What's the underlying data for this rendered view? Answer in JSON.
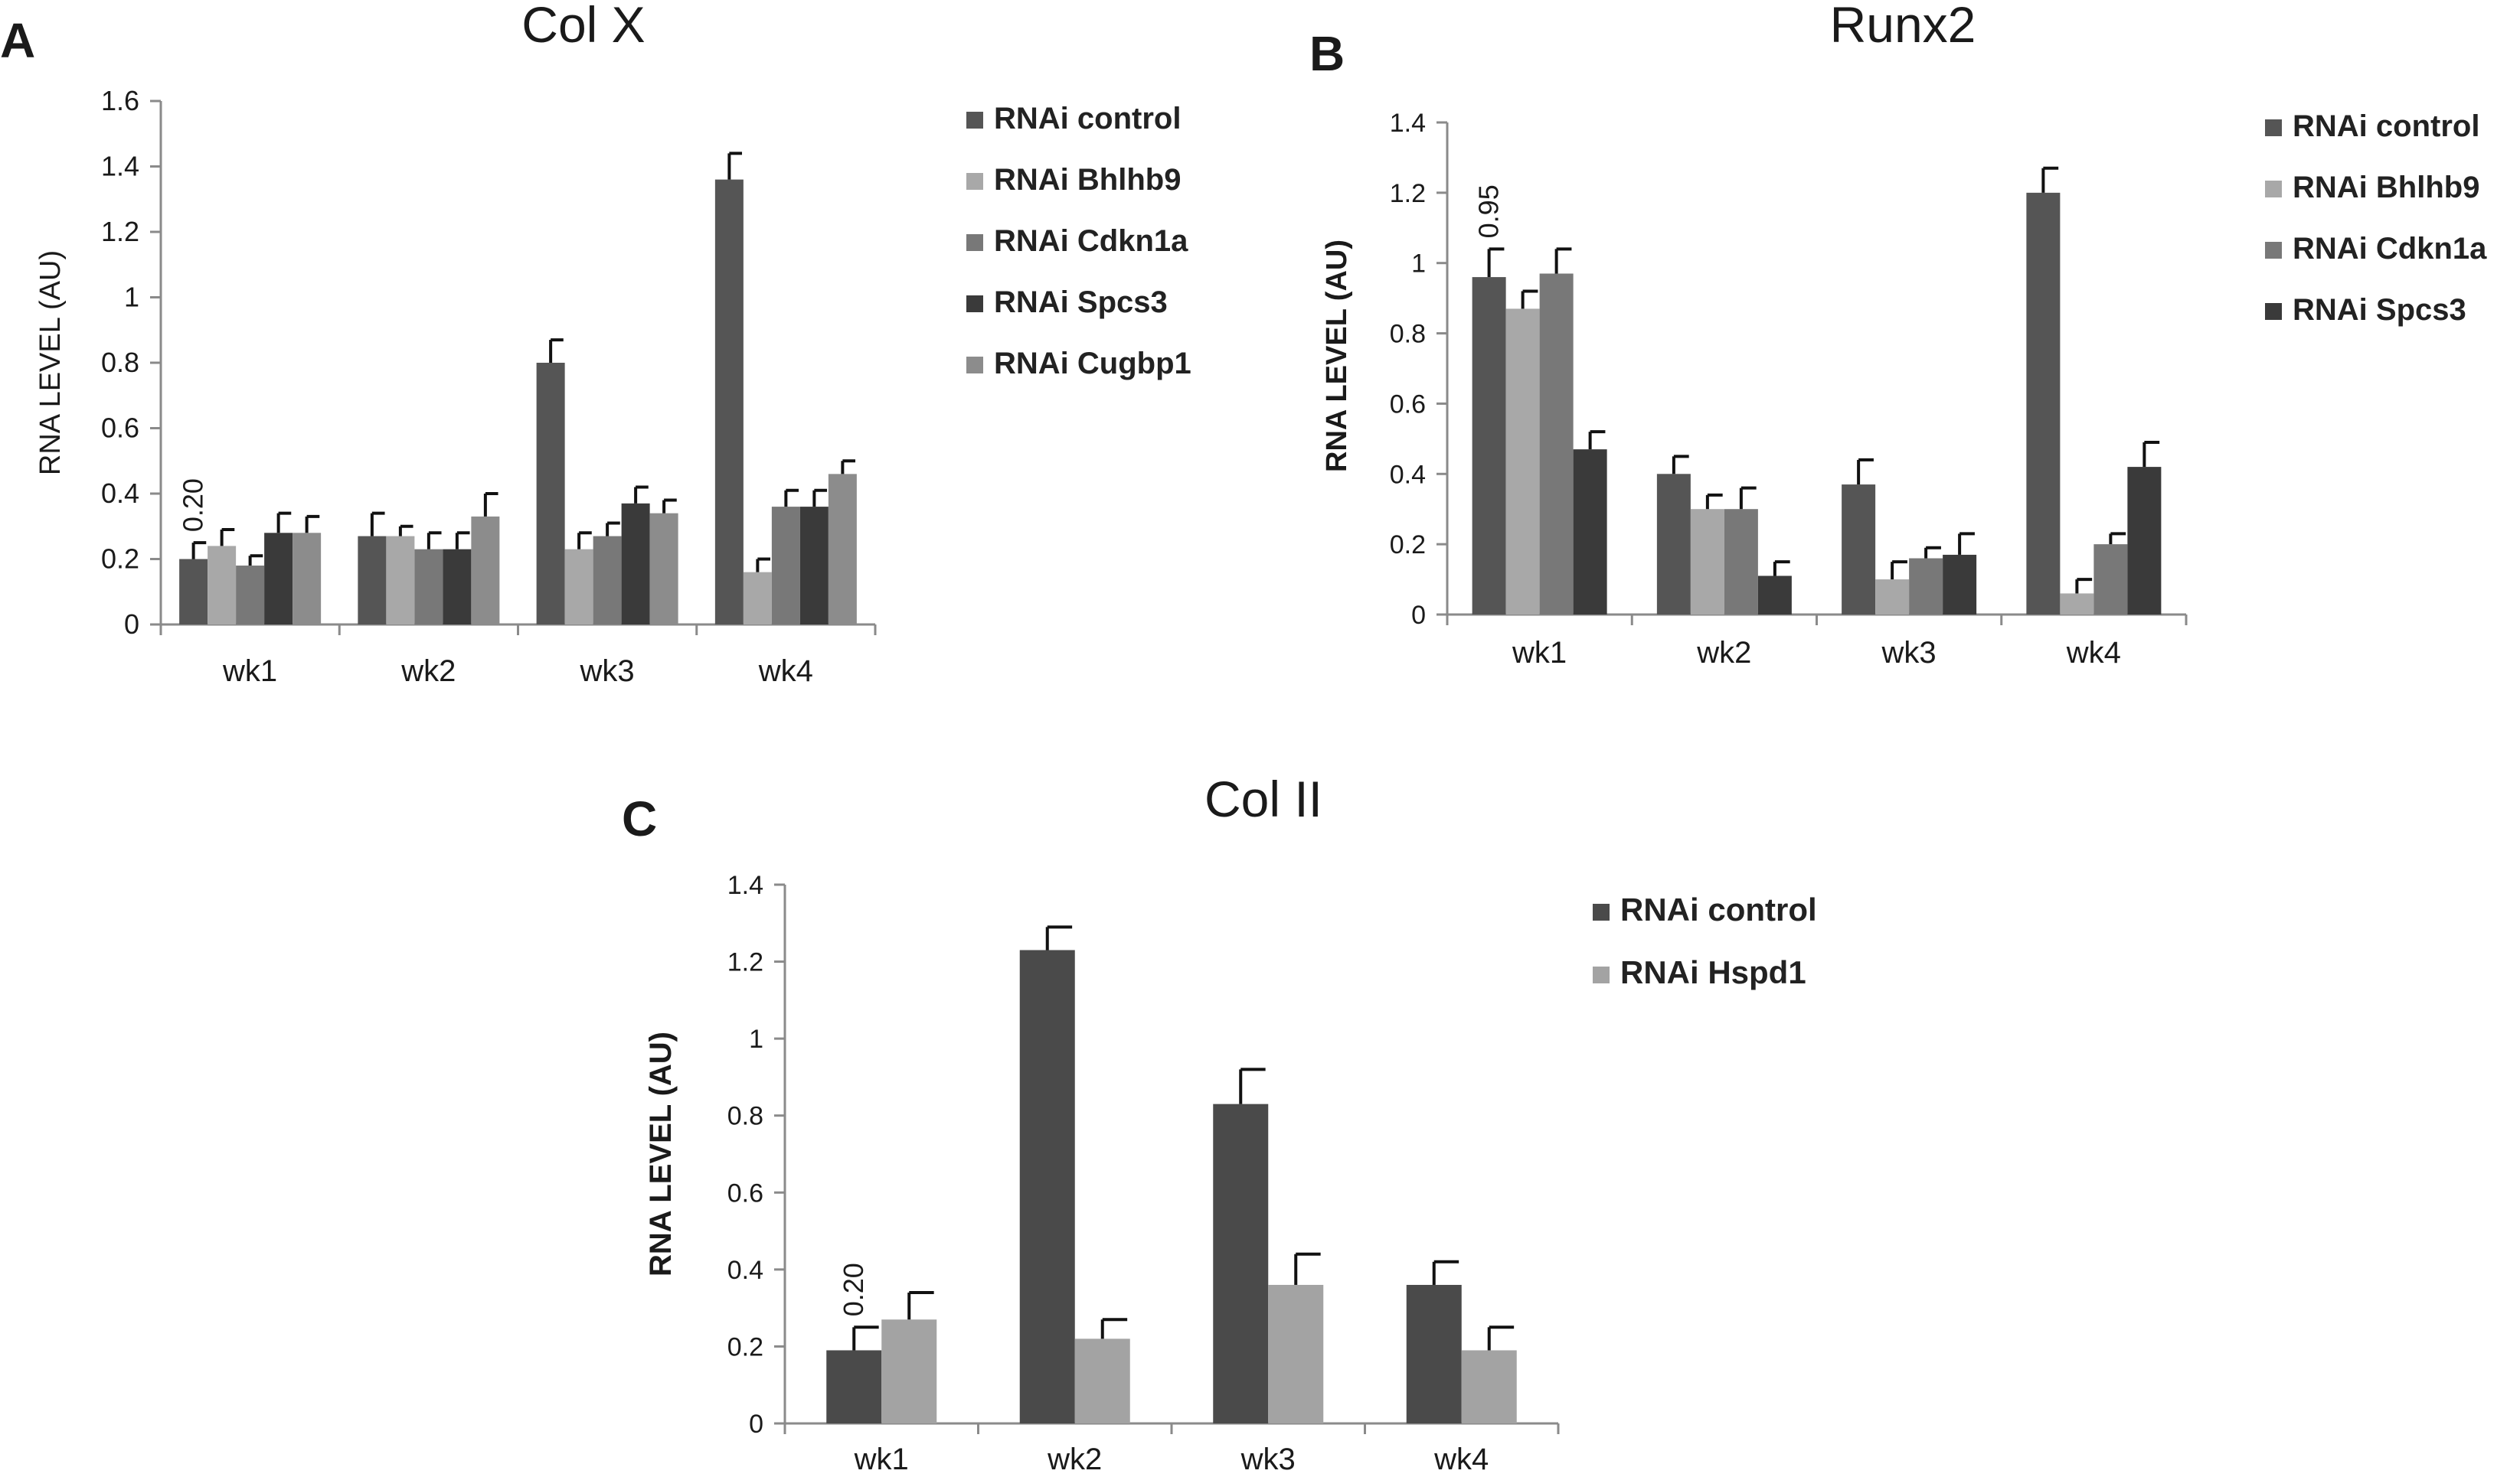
{
  "colors": {
    "control": "#555555",
    "bhlhb9": "#a8a8a8",
    "cdkn1a": "#787878",
    "spcs3": "#3a3a3a",
    "cugbp1": "#8c8c8c",
    "control_c": "#4a4a4a",
    "hspd1": "#a3a3a3",
    "axis": "#8a8a8a",
    "text": "#1a1a1a"
  },
  "chart_data": [
    {
      "panel": "A",
      "type": "bar",
      "title": "Col X",
      "xlabel": "",
      "ylabel": "RNA LEVEL (AU)",
      "ylim": [
        0,
        1.6
      ],
      "yticks": [
        "0",
        "0.2",
        "0.4",
        "0.6",
        "0.8",
        "1",
        "1.2",
        "1.4",
        "1.6"
      ],
      "grid": false,
      "legend": "right",
      "annotation": "0.20",
      "categories": [
        "wk1",
        "wk2",
        "wk3",
        "wk4"
      ],
      "series": [
        {
          "name": "RNAi control",
          "values": [
            0.2,
            0.27,
            0.8,
            1.36
          ],
          "errors": [
            0.05,
            0.07,
            0.07,
            0.08
          ]
        },
        {
          "name": "RNAi Bhlhb9",
          "values": [
            0.24,
            0.27,
            0.23,
            0.16
          ],
          "errors": [
            0.05,
            0.03,
            0.05,
            0.04
          ]
        },
        {
          "name": "RNAi Cdkn1a",
          "values": [
            0.18,
            0.23,
            0.27,
            0.36
          ],
          "errors": [
            0.03,
            0.05,
            0.04,
            0.05
          ]
        },
        {
          "name": "RNAi Spcs3",
          "values": [
            0.28,
            0.23,
            0.37,
            0.36
          ],
          "errors": [
            0.06,
            0.05,
            0.05,
            0.05
          ]
        },
        {
          "name": "RNAi Cugbp1",
          "values": [
            0.28,
            0.33,
            0.34,
            0.46
          ],
          "errors": [
            0.05,
            0.07,
            0.04,
            0.04
          ]
        }
      ]
    },
    {
      "panel": "B",
      "type": "bar",
      "title": "Runx2",
      "xlabel": "",
      "ylabel": "RNA LEVEL (AU)",
      "ylim": [
        0,
        1.4
      ],
      "yticks": [
        "0",
        "0.2",
        "0.4",
        "0.6",
        "0.8",
        "1",
        "1.2",
        "1.4"
      ],
      "grid": false,
      "legend": "right",
      "annotation": "0.95",
      "categories": [
        "wk1",
        "wk2",
        "wk3",
        "wk4"
      ],
      "series": [
        {
          "name": "RNAi control",
          "values": [
            0.96,
            0.4,
            0.37,
            1.2
          ],
          "errors": [
            0.08,
            0.05,
            0.07,
            0.07
          ]
        },
        {
          "name": "RNAi Bhlhb9",
          "values": [
            0.87,
            0.3,
            0.1,
            0.06
          ],
          "errors": [
            0.05,
            0.04,
            0.05,
            0.04
          ]
        },
        {
          "name": "RNAi Cdkn1a",
          "values": [
            0.97,
            0.3,
            0.16,
            0.2
          ],
          "errors": [
            0.07,
            0.06,
            0.03,
            0.03
          ]
        },
        {
          "name": "RNAi Spcs3",
          "values": [
            0.47,
            0.11,
            0.17,
            0.42
          ],
          "errors": [
            0.05,
            0.04,
            0.06,
            0.07
          ]
        }
      ]
    },
    {
      "panel": "C",
      "type": "bar",
      "title": "Col II",
      "xlabel": "",
      "ylabel": "RNA LEVEL (AU)",
      "ylim": [
        0,
        1.4
      ],
      "yticks": [
        "0",
        "0.2",
        "0.4",
        "0.6",
        "0.8",
        "1",
        "1.2",
        "1.4"
      ],
      "grid": false,
      "legend": "right",
      "annotation": "0.20",
      "categories": [
        "wk1",
        "wk2",
        "wk3",
        "wk4"
      ],
      "series": [
        {
          "name": "RNAi control",
          "values": [
            0.19,
            1.23,
            0.83,
            0.36
          ],
          "errors": [
            0.06,
            0.06,
            0.09,
            0.06
          ]
        },
        {
          "name": "RNAi Hspd1",
          "values": [
            0.27,
            0.22,
            0.36,
            0.19
          ],
          "errors": [
            0.07,
            0.05,
            0.08,
            0.06
          ]
        }
      ]
    }
  ]
}
